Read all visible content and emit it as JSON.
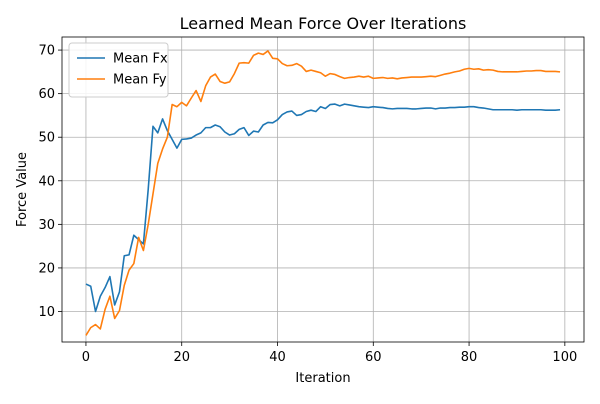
{
  "chart_data": {
    "type": "line",
    "title": "Learned Mean Force Over Iterations",
    "xlabel": "Iteration",
    "ylabel": "Force Value",
    "xlim": [
      -5,
      104
    ],
    "ylim": [
      3,
      73
    ],
    "xticks": [
      0,
      20,
      40,
      60,
      80,
      100
    ],
    "yticks": [
      10,
      20,
      30,
      40,
      50,
      60,
      70
    ],
    "grid": true,
    "legend": "top-left",
    "x": [
      0,
      1,
      2,
      3,
      4,
      5,
      6,
      7,
      8,
      9,
      10,
      11,
      12,
      13,
      14,
      15,
      16,
      17,
      18,
      19,
      20,
      21,
      22,
      23,
      24,
      25,
      26,
      27,
      28,
      29,
      30,
      31,
      32,
      33,
      34,
      35,
      36,
      37,
      38,
      39,
      40,
      41,
      42,
      43,
      44,
      45,
      46,
      47,
      48,
      49,
      50,
      51,
      52,
      53,
      54,
      55,
      56,
      57,
      58,
      59,
      60,
      61,
      62,
      63,
      64,
      65,
      66,
      67,
      68,
      69,
      70,
      71,
      72,
      73,
      74,
      75,
      76,
      77,
      78,
      79,
      80,
      81,
      82,
      83,
      84,
      85,
      86,
      87,
      88,
      89,
      90,
      91,
      92,
      93,
      94,
      95,
      96,
      97,
      98,
      99
    ],
    "series": [
      {
        "name": "Mean Fx",
        "color": "#1f77b4",
        "values": [
          16.3,
          15.8,
          10.0,
          13.5,
          15.5,
          18.0,
          11.5,
          14.5,
          22.8,
          23.0,
          27.5,
          26.5,
          25.5,
          38.0,
          52.5,
          51.0,
          54.2,
          51.5,
          49.5,
          47.5,
          49.5,
          49.6,
          49.8,
          50.5,
          51.0,
          52.2,
          52.2,
          52.8,
          52.4,
          51.2,
          50.5,
          50.8,
          51.8,
          52.2,
          50.4,
          51.4,
          51.2,
          52.8,
          53.4,
          53.3,
          54.0,
          55.2,
          55.8,
          56.0,
          55.0,
          55.2,
          55.9,
          56.2,
          55.9,
          57.0,
          56.6,
          57.5,
          57.6,
          57.2,
          57.6,
          57.4,
          57.2,
          57.0,
          56.9,
          56.8,
          57.0,
          56.9,
          56.8,
          56.6,
          56.5,
          56.6,
          56.6,
          56.6,
          56.5,
          56.5,
          56.6,
          56.7,
          56.7,
          56.5,
          56.7,
          56.7,
          56.8,
          56.8,
          56.9,
          56.9,
          57.0,
          57.0,
          56.8,
          56.7,
          56.5,
          56.3,
          56.3,
          56.3,
          56.3,
          56.3,
          56.2,
          56.3,
          56.3,
          56.3,
          56.3,
          56.3,
          56.2,
          56.2,
          56.2,
          56.3
        ]
      },
      {
        "name": "Mean Fy",
        "color": "#ff7f0e",
        "values": [
          4.5,
          6.3,
          7.0,
          6.0,
          10.5,
          13.5,
          8.4,
          10.2,
          16.0,
          19.5,
          21.0,
          27.0,
          24.0,
          30.0,
          37.0,
          44.0,
          47.3,
          50.0,
          57.5,
          57.0,
          58.0,
          57.2,
          59.0,
          60.7,
          58.2,
          61.8,
          63.8,
          64.5,
          62.8,
          62.4,
          62.7,
          64.6,
          67.0,
          67.1,
          67.0,
          68.8,
          69.3,
          69.0,
          69.8,
          68.1,
          68.0,
          66.9,
          66.4,
          66.5,
          66.9,
          66.3,
          65.1,
          65.4,
          65.1,
          64.8,
          64.0,
          64.6,
          64.4,
          63.9,
          63.5,
          63.7,
          63.8,
          64.0,
          63.8,
          64.0,
          63.5,
          63.6,
          63.7,
          63.5,
          63.6,
          63.4,
          63.6,
          63.7,
          63.8,
          63.8,
          63.8,
          63.9,
          64.0,
          63.9,
          64.2,
          64.5,
          64.7,
          65.0,
          65.2,
          65.6,
          65.8,
          65.6,
          65.7,
          65.4,
          65.5,
          65.4,
          65.1,
          65.0,
          65.0,
          65.0,
          65.0,
          65.1,
          65.2,
          65.2,
          65.3,
          65.3,
          65.1,
          65.1,
          65.1,
          65.0
        ]
      }
    ]
  }
}
